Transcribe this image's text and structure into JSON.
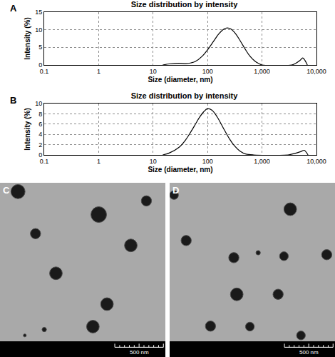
{
  "chart_data": [
    {
      "type": "line",
      "panel": "A",
      "title": "Size distribution by intensity",
      "x_label": "Size (diameter, nm)",
      "y_label": "Intensity (%)",
      "log": "x",
      "grid": true,
      "color": "#000000",
      "x": [
        15,
        20,
        30,
        40,
        50,
        60,
        80,
        100,
        130,
        160,
        200,
        230,
        270,
        330,
        400,
        500,
        600,
        750,
        900,
        1000,
        3500,
        4200,
        5000,
        5600,
        6200,
        6800
      ],
      "values": [
        0,
        0.3,
        0.5,
        0.4,
        0.6,
        1.0,
        2.5,
        4.3,
        6.8,
        8.8,
        10.2,
        10.5,
        10.2,
        8.8,
        6.8,
        4.3,
        2.5,
        1.0,
        0.3,
        0,
        0,
        0.5,
        1.3,
        2.0,
        1.2,
        0
      ],
      "xlim": [
        0.1,
        10000
      ],
      "xticks": [
        0.1,
        1,
        10,
        100,
        {
          "value": 1000,
          "label": "1,000"
        },
        {
          "value": 10000,
          "label": "10,000"
        }
      ],
      "ylim": [
        0,
        15
      ],
      "yticks": [
        0,
        5,
        10,
        15
      ]
    },
    {
      "type": "line",
      "panel": "B",
      "title": "Size distribution by intensity",
      "x_label": "Size (diameter, nm)",
      "y_label": "Intensity (%)",
      "log": "x",
      "grid": true,
      "color": "#000000",
      "x": [
        15,
        20,
        30,
        40,
        50,
        60,
        70,
        85,
        100,
        120,
        150,
        200,
        250,
        300,
        400,
        500,
        700,
        3000,
        4000,
        5000,
        6000,
        6500,
        7000
      ],
      "values": [
        0,
        0.4,
        1.5,
        3.0,
        4.6,
        6.0,
        7.2,
        8.4,
        9.0,
        8.7,
        7.4,
        5.0,
        3.2,
        2.0,
        0.7,
        0.2,
        0,
        0,
        0.3,
        0.6,
        0.9,
        0.5,
        0
      ],
      "xlim": [
        0.1,
        10000
      ],
      "xticks": [
        0.1,
        1,
        10,
        100,
        {
          "value": 1000,
          "label": "1,000"
        },
        {
          "value": 10000,
          "label": "10,000"
        }
      ],
      "ylim": [
        0,
        10
      ],
      "yticks": [
        0,
        2,
        4,
        6,
        8,
        10
      ]
    },
    {
      "type": "micrograph",
      "panel": "C",
      "tick_labels": false,
      "color": "#1a1a1a",
      "xlim": [
        0,
        1700
      ],
      "ylim": [
        1620,
        0
      ],
      "scale_bar": {
        "length": 500,
        "label": "500 nm"
      },
      "particles": [
        {
          "x": 185,
          "y": 90,
          "d": 145
        },
        {
          "x": 1015,
          "y": 325,
          "d": 160
        },
        {
          "x": 1505,
          "y": 185,
          "d": 105
        },
        {
          "x": 365,
          "y": 520,
          "d": 105
        },
        {
          "x": 1345,
          "y": 640,
          "d": 130
        },
        {
          "x": 575,
          "y": 925,
          "d": 130
        },
        {
          "x": 1100,
          "y": 1240,
          "d": 130
        },
        {
          "x": 955,
          "y": 1470,
          "d": 130
        },
        {
          "x": 455,
          "y": 1500,
          "d": 45
        },
        {
          "x": 255,
          "y": 1560,
          "d": 30
        }
      ]
    },
    {
      "type": "micrograph",
      "panel": "D",
      "tick_labels": false,
      "color": "#1a1a1a",
      "xlim": [
        0,
        1700
      ],
      "ylim": [
        1620,
        0
      ],
      "scale_bar": {
        "length": 500,
        "label": "500 nm"
      },
      "particles": [
        {
          "x": 45,
          "y": 125,
          "d": 90
        },
        {
          "x": 1240,
          "y": 270,
          "d": 130
        },
        {
          "x": 170,
          "y": 590,
          "d": 105
        },
        {
          "x": 660,
          "y": 765,
          "d": 105
        },
        {
          "x": 910,
          "y": 715,
          "d": 45
        },
        {
          "x": 1175,
          "y": 750,
          "d": 90
        },
        {
          "x": 1615,
          "y": 735,
          "d": 105
        },
        {
          "x": 690,
          "y": 1140,
          "d": 130
        },
        {
          "x": 1115,
          "y": 1140,
          "d": 105
        },
        {
          "x": 420,
          "y": 1465,
          "d": 105
        },
        {
          "x": 825,
          "y": 1470,
          "d": 90
        },
        {
          "x": 1350,
          "y": 1560,
          "d": 90
        }
      ]
    }
  ]
}
